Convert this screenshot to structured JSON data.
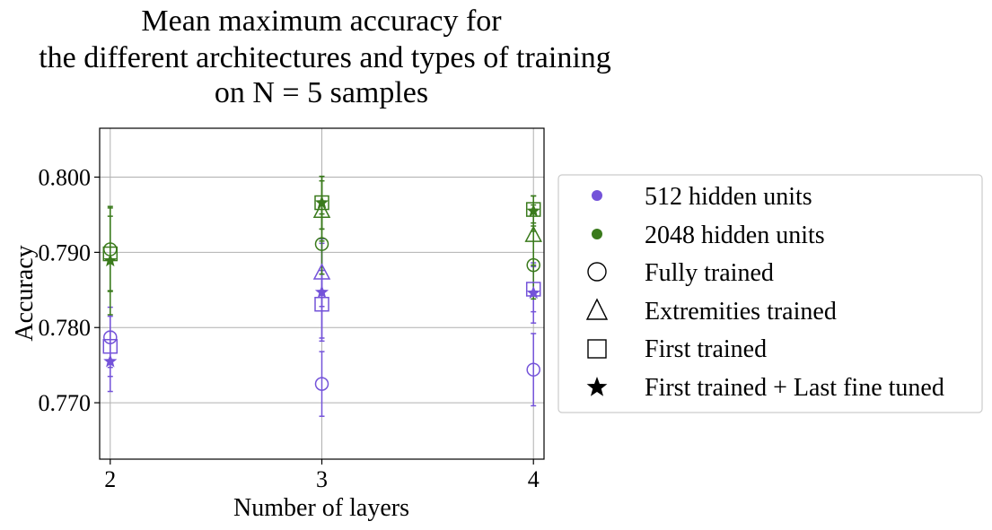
{
  "chart_data": {
    "type": "scatter",
    "title_lines": [
      "Mean maximum accuracy for",
      "the different architectures and types of training",
      "on N = 5 samples"
    ],
    "xlabel": "Number of layers",
    "ylabel": "Accuracy",
    "x_ticks": [
      2,
      3,
      4
    ],
    "y_ticks": [
      "0.770",
      "0.780",
      "0.790",
      "0.800"
    ],
    "xlim": [
      1.95,
      4.05
    ],
    "ylim": [
      0.7625,
      0.8065
    ],
    "grid": true,
    "legend_position": "outside-right",
    "color_series": [
      {
        "name": "512 hidden units",
        "color": "#7453d9"
      },
      {
        "name": "2048 hidden units",
        "color": "#3a7a1c"
      }
    ],
    "marker_series": [
      {
        "name": "Fully trained",
        "marker": "circle"
      },
      {
        "name": "Extremities trained",
        "marker": "triangle"
      },
      {
        "name": "First trained",
        "marker": "square"
      },
      {
        "name": "First trained + Last fine tuned",
        "marker": "star"
      }
    ],
    "points": [
      {
        "units": 512,
        "marker": "circle",
        "x": 2,
        "y": 0.7787,
        "err": 0.004
      },
      {
        "units": 512,
        "marker": "square",
        "x": 2,
        "y": 0.7775,
        "err": 0.004
      },
      {
        "units": 512,
        "marker": "star",
        "x": 2,
        "y": 0.7755,
        "err": 0.004
      },
      {
        "units": 512,
        "marker": "circle",
        "x": 3,
        "y": 0.7725,
        "err": 0.0043
      },
      {
        "units": 512,
        "marker": "triangle",
        "x": 3,
        "y": 0.7873,
        "err": 0.0045
      },
      {
        "units": 512,
        "marker": "square",
        "x": 3,
        "y": 0.7831,
        "err": 0.0045
      },
      {
        "units": 512,
        "marker": "star",
        "x": 3,
        "y": 0.7847,
        "err": 0.0065
      },
      {
        "units": 512,
        "marker": "circle",
        "x": 4,
        "y": 0.7744,
        "err": 0.0048
      },
      {
        "units": 512,
        "marker": "square",
        "x": 4,
        "y": 0.7851,
        "err": 0.003
      },
      {
        "units": 512,
        "marker": "star",
        "x": 4,
        "y": 0.7846,
        "err": 0.004
      },
      {
        "units": 2048,
        "marker": "circle",
        "x": 2,
        "y": 0.7904,
        "err": 0.0055
      },
      {
        "units": 2048,
        "marker": "square",
        "x": 2,
        "y": 0.7898,
        "err": 0.005
      },
      {
        "units": 2048,
        "marker": "star",
        "x": 2,
        "y": 0.7889,
        "err": 0.0072
      },
      {
        "units": 2048,
        "marker": "circle",
        "x": 3,
        "y": 0.7911,
        "err": 0.004
      },
      {
        "units": 2048,
        "marker": "triangle",
        "x": 3,
        "y": 0.7955,
        "err": 0.004
      },
      {
        "units": 2048,
        "marker": "square",
        "x": 3,
        "y": 0.7966,
        "err": 0.0035
      },
      {
        "units": 2048,
        "marker": "star",
        "x": 3,
        "y": 0.7966,
        "err": 0.0035
      },
      {
        "units": 2048,
        "marker": "circle",
        "x": 4,
        "y": 0.7883,
        "err": 0.0045
      },
      {
        "units": 2048,
        "marker": "triangle",
        "x": 4,
        "y": 0.7923,
        "err": 0.004
      },
      {
        "units": 2048,
        "marker": "square",
        "x": 4,
        "y": 0.7957,
        "err": 0.0018
      },
      {
        "units": 2048,
        "marker": "star",
        "x": 4,
        "y": 0.7955,
        "err": 0.002
      }
    ]
  }
}
